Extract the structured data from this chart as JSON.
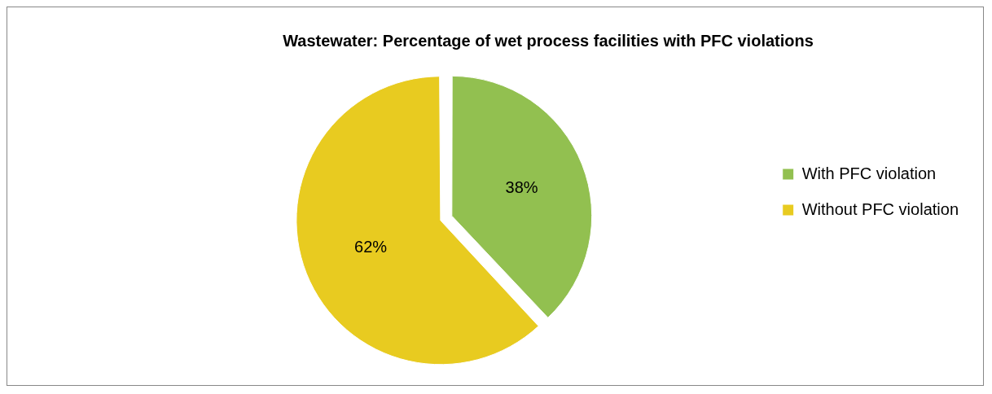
{
  "chart_data": {
    "type": "pie",
    "title": "Wastewater: Percentage of wet process facilities with PFC violations",
    "categories": [
      "With PFC violation",
      "Without PFC violation"
    ],
    "values": [
      38,
      62
    ],
    "colors": [
      "#92c050",
      "#e8cb20"
    ],
    "value_labels": [
      "38%",
      "62%"
    ],
    "legend": "right"
  }
}
